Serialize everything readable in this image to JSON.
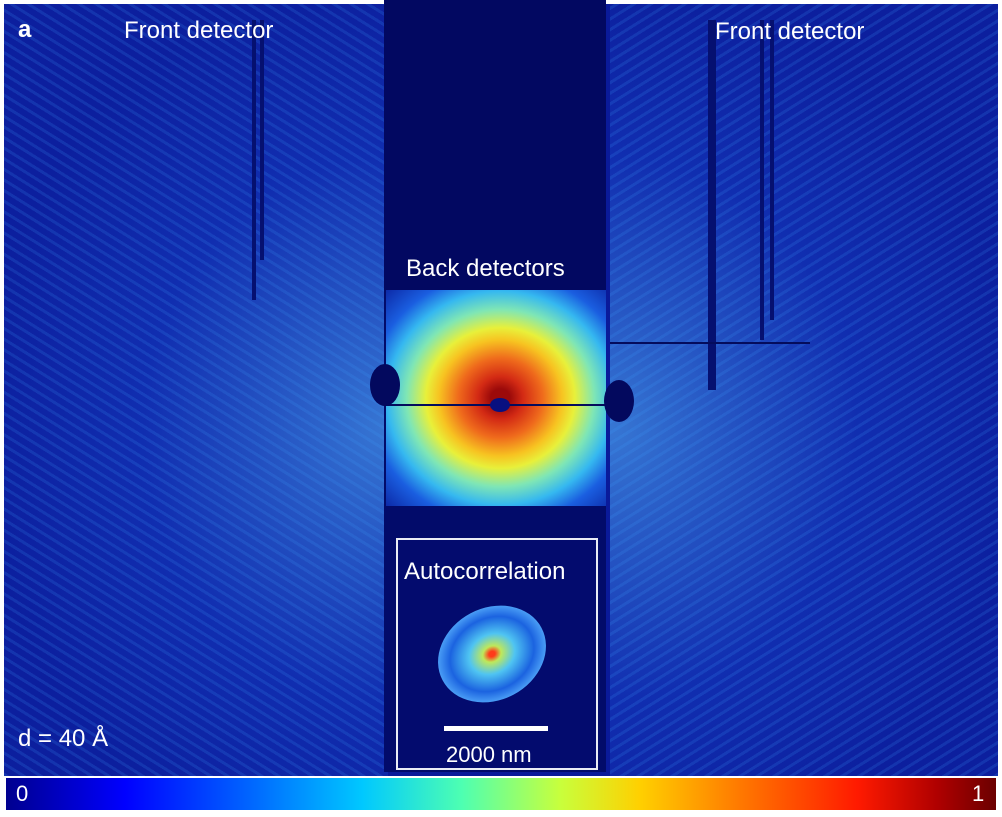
{
  "panel_letter": "a",
  "labels": {
    "front_detector_left": "Front detector",
    "front_detector_right": "Front detector",
    "back_detectors": "Back detectors",
    "autocorrelation": "Autocorrelation",
    "scale_bar": "2000 nm",
    "distance": "d = 40 Å"
  },
  "colorbar": {
    "min_label": "0",
    "max_label": "1",
    "colors": [
      "#00008f",
      "#0000ff",
      "#00c8ff",
      "#c8ff3c",
      "#ffd000",
      "#ff1a00",
      "#6b0000"
    ]
  }
}
